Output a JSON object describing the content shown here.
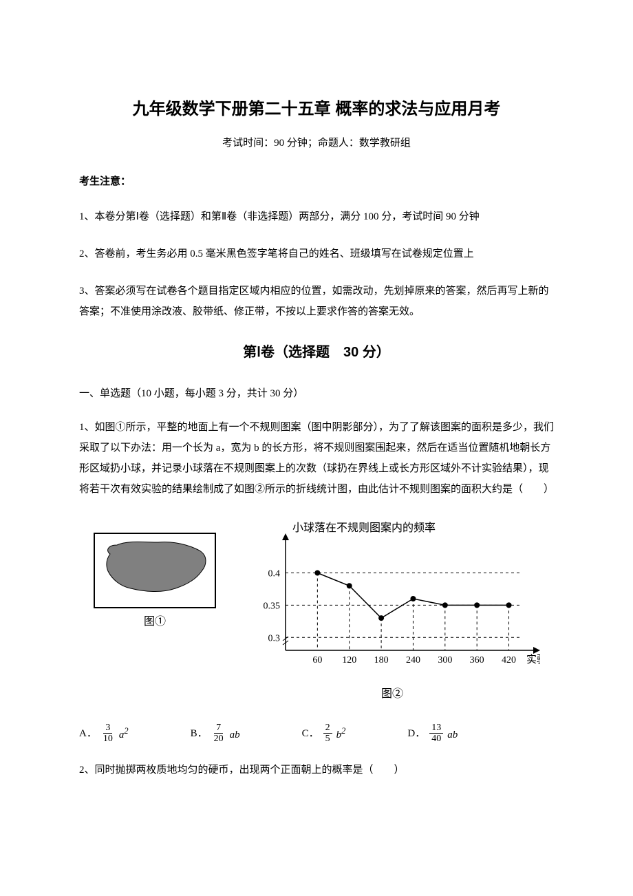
{
  "title": "九年级数学下册第二十五章 概率的求法与应用月考",
  "subtitle": "考试时间：90 分钟；命题人：数学教研组",
  "notice_header": "考生注意：",
  "notices": [
    "1、本卷分第Ⅰ卷（选择题）和第Ⅱ卷（非选择题）两部分，满分 100 分，考试时间 90 分钟",
    "2、答卷前，考生务必用 0.5 毫米黑色签字笔将自己的姓名、班级填写在试卷规定位置上",
    "3、答案必须写在试卷各个题目指定区域内相应的位置，如需改动，先划掉原来的答案，然后再写上新的答案；不准使用涂改液、胶带纸、修正带，不按以上要求作答的答案无效。"
  ],
  "section_header": "第Ⅰ卷（选择题　30 分）",
  "question_type": "一、单选题（10 小题，每小题 3 分，共计 30 分）",
  "question1": {
    "text": "1、如图①所示，平整的地面上有一个不规则图案（图中阴影部分），为了了解该图案的面积是多少，我们采取了以下办法：用一个长为 a，宽为 b 的长方形，将不规则图案围起来，然后在适当位置随机地朝长方形区域扔小球，并记录小球落在不规则图案上的次数（球扔在界线上或长方形区域外不计实验结果），现将若干次有效实验的结果绘制成了如图②所示的折线统计图，由此估计不规则图案的面积大约是（　　）",
    "fig1_caption": "图①",
    "fig2_caption": "图②",
    "chart": {
      "type": "line",
      "y_axis_title": "小球落在不规则图案内的频率",
      "x_axis_title": "实验次数",
      "x_ticks": [
        60,
        120,
        180,
        240,
        300,
        360,
        420
      ],
      "y_ticks": [
        0.3,
        0.35,
        0.4
      ],
      "y_axis_start": 0.28,
      "y_axis_end": 0.44,
      "points": [
        {
          "x": 60,
          "y": 0.4
        },
        {
          "x": 120,
          "y": 0.38
        },
        {
          "x": 180,
          "y": 0.33
        },
        {
          "x": 240,
          "y": 0.36
        },
        {
          "x": 300,
          "y": 0.35
        },
        {
          "x": 360,
          "y": 0.35
        },
        {
          "x": 420,
          "y": 0.35
        }
      ],
      "line_color": "#000000",
      "point_color": "#000000",
      "grid_color": "#000000",
      "dashed_helper_lines": true
    },
    "fig1": {
      "width": 180,
      "height": 135,
      "border_color": "#000000",
      "fill_color": "#808080"
    },
    "options": [
      {
        "label": "A．",
        "num": "3",
        "den": "10",
        "expr": "a",
        "sup": "2"
      },
      {
        "label": "B．",
        "num": "7",
        "den": "20",
        "expr": "ab",
        "sup": ""
      },
      {
        "label": "C．",
        "num": "2",
        "den": "5",
        "expr": "b",
        "sup": "2"
      },
      {
        "label": "D．",
        "num": "13",
        "den": "40",
        "expr": "ab",
        "sup": ""
      }
    ]
  },
  "question2": {
    "text": "2、同时抛掷两枚质地均匀的硬币，出现两个正面朝上的概率是（　　）"
  }
}
